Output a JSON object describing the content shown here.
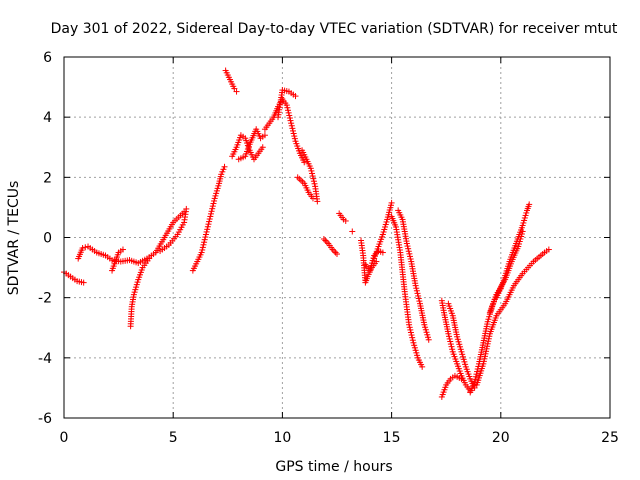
{
  "chart_data": {
    "type": "scatter",
    "title": "Day 301 of 2022, Sidereal Day-to-day VTEC variation (SDTVAR) for receiver mtut",
    "xlabel": "GPS time / hours",
    "ylabel": "SDTVAR / TECUs",
    "xlim": [
      0,
      25
    ],
    "ylim": [
      -6,
      6
    ],
    "xticks": [
      "0",
      "5",
      "10",
      "15",
      "20",
      "25"
    ],
    "yticks": [
      "-6",
      "-4",
      "-2",
      "0",
      "2",
      "4",
      "6"
    ],
    "grid": true,
    "marker": "+",
    "marker_color": "#ff0000",
    "series": [
      {
        "name": "mtut",
        "tracks": [
          [
            [
              0.0,
              -1.15
            ],
            [
              0.3,
              -1.3
            ],
            [
              0.6,
              -1.45
            ],
            [
              0.9,
              -1.5
            ]
          ],
          [
            [
              0.65,
              -0.7
            ],
            [
              0.85,
              -0.35
            ],
            [
              1.1,
              -0.3
            ],
            [
              1.5,
              -0.5
            ],
            [
              1.9,
              -0.6
            ],
            [
              2.2,
              -0.75
            ],
            [
              2.6,
              -0.8
            ],
            [
              3.0,
              -0.75
            ],
            [
              3.4,
              -0.85
            ],
            [
              3.8,
              -0.7
            ],
            [
              4.2,
              -0.5
            ],
            [
              4.6,
              0.0
            ],
            [
              5.0,
              0.5
            ],
            [
              5.5,
              0.85
            ]
          ],
          [
            [
              2.2,
              -1.1
            ],
            [
              2.5,
              -0.5
            ],
            [
              2.7,
              -0.4
            ]
          ],
          [
            [
              3.05,
              -2.95
            ],
            [
              3.1,
              -2.3
            ],
            [
              3.2,
              -1.9
            ],
            [
              3.4,
              -1.4
            ],
            [
              3.6,
              -1.0
            ],
            [
              3.9,
              -0.7
            ]
          ],
          [
            [
              4.4,
              -0.45
            ],
            [
              4.8,
              -0.25
            ],
            [
              5.2,
              0.1
            ],
            [
              5.5,
              0.5
            ],
            [
              5.6,
              0.95
            ]
          ],
          [
            [
              5.9,
              -1.1
            ],
            [
              6.1,
              -0.8
            ],
            [
              6.3,
              -0.5
            ],
            [
              6.5,
              0.1
            ],
            [
              6.7,
              0.7
            ],
            [
              6.9,
              1.3
            ],
            [
              7.1,
              1.8
            ],
            [
              7.2,
              2.1
            ],
            [
              7.35,
              2.35
            ]
          ],
          [
            [
              7.4,
              5.55
            ],
            [
              7.6,
              5.25
            ],
            [
              7.8,
              4.95
            ],
            [
              7.9,
              4.85
            ]
          ],
          [
            [
              7.7,
              2.7
            ],
            [
              7.9,
              3.0
            ],
            [
              8.1,
              3.4
            ],
            [
              8.3,
              3.3
            ],
            [
              8.5,
              2.9
            ],
            [
              8.7,
              2.6
            ],
            [
              8.9,
              2.8
            ],
            [
              9.1,
              3.0
            ]
          ],
          [
            [
              8.0,
              2.6
            ],
            [
              8.3,
              2.7
            ],
            [
              8.5,
              3.1
            ],
            [
              8.8,
              3.6
            ],
            [
              9.0,
              3.3
            ],
            [
              9.2,
              3.4
            ]
          ],
          [
            [
              9.2,
              3.6
            ],
            [
              9.4,
              3.8
            ],
            [
              9.6,
              4.0
            ],
            [
              9.8,
              4.35
            ],
            [
              10.0,
              4.6
            ],
            [
              10.2,
              4.4
            ],
            [
              10.4,
              3.8
            ],
            [
              10.6,
              3.2
            ],
            [
              10.8,
              2.8
            ],
            [
              11.0,
              2.5
            ]
          ],
          [
            [
              9.8,
              4.0
            ],
            [
              10.0,
              4.9
            ],
            [
              10.3,
              4.85
            ],
            [
              10.6,
              4.7
            ]
          ],
          [
            [
              10.9,
              2.9
            ],
            [
              11.1,
              2.6
            ],
            [
              11.3,
              2.3
            ],
            [
              11.5,
              1.7
            ],
            [
              11.6,
              1.2
            ]
          ],
          [
            [
              10.7,
              2.0
            ],
            [
              11.0,
              1.8
            ],
            [
              11.2,
              1.5
            ],
            [
              11.4,
              1.3
            ]
          ],
          [
            [
              11.9,
              -0.05
            ],
            [
              12.1,
              -0.2
            ],
            [
              12.3,
              -0.4
            ],
            [
              12.5,
              -0.55
            ]
          ],
          [
            [
              12.6,
              0.8
            ],
            [
              12.8,
              0.6
            ],
            [
              12.9,
              0.55
            ]
          ],
          [
            [
              13.2,
              0.2
            ]
          ],
          [
            [
              13.6,
              -0.1
            ],
            [
              13.7,
              -0.6
            ],
            [
              13.8,
              -1.5
            ],
            [
              13.9,
              -1.3
            ],
            [
              14.1,
              -1.0
            ],
            [
              14.3,
              -0.8
            ]
          ],
          [
            [
              13.8,
              -0.9
            ],
            [
              14.0,
              -1.1
            ],
            [
              14.2,
              -0.6
            ],
            [
              14.4,
              -0.45
            ],
            [
              14.6,
              -0.5
            ]
          ],
          [
            [
              14.2,
              -0.7
            ],
            [
              14.4,
              -0.3
            ],
            [
              14.6,
              0.1
            ],
            [
              14.8,
              0.6
            ],
            [
              15.0,
              1.15
            ]
          ],
          [
            [
              15.0,
              0.7
            ],
            [
              15.2,
              0.35
            ],
            [
              15.4,
              -0.5
            ],
            [
              15.6,
              -1.8
            ],
            [
              15.8,
              -2.9
            ],
            [
              16.0,
              -3.5
            ],
            [
              16.2,
              -4.0
            ],
            [
              16.4,
              -4.3
            ]
          ],
          [
            [
              15.3,
              0.9
            ],
            [
              15.5,
              0.6
            ],
            [
              15.7,
              -0.2
            ],
            [
              15.9,
              -0.8
            ],
            [
              16.1,
              -1.6
            ],
            [
              16.3,
              -2.2
            ],
            [
              16.5,
              -2.9
            ],
            [
              16.7,
              -3.4
            ]
          ],
          [
            [
              17.3,
              -5.3
            ],
            [
              17.5,
              -4.9
            ],
            [
              17.7,
              -4.7
            ],
            [
              17.9,
              -4.6
            ],
            [
              18.2,
              -4.7
            ]
          ],
          [
            [
              17.3,
              -2.1
            ],
            [
              17.4,
              -2.5
            ],
            [
              17.6,
              -3.2
            ],
            [
              17.8,
              -3.8
            ],
            [
              18.0,
              -4.2
            ],
            [
              18.2,
              -4.6
            ],
            [
              18.4,
              -4.9
            ],
            [
              18.6,
              -5.1
            ]
          ],
          [
            [
              17.6,
              -2.2
            ],
            [
              17.8,
              -2.6
            ],
            [
              18.0,
              -3.3
            ],
            [
              18.2,
              -3.8
            ],
            [
              18.4,
              -4.3
            ],
            [
              18.6,
              -4.7
            ],
            [
              18.8,
              -5.0
            ]
          ],
          [
            [
              18.6,
              -5.15
            ],
            [
              18.8,
              -4.8
            ],
            [
              19.0,
              -4.2
            ],
            [
              19.2,
              -3.5
            ],
            [
              19.4,
              -2.8
            ],
            [
              19.6,
              -2.3
            ],
            [
              19.8,
              -1.9
            ],
            [
              20.0,
              -1.7
            ]
          ],
          [
            [
              18.9,
              -4.9
            ],
            [
              19.2,
              -4.2
            ],
            [
              19.5,
              -3.2
            ],
            [
              19.8,
              -2.6
            ],
            [
              20.2,
              -2.2
            ],
            [
              20.6,
              -1.6
            ],
            [
              21.0,
              -1.2
            ],
            [
              21.5,
              -0.8
            ],
            [
              22.0,
              -0.5
            ],
            [
              22.2,
              -0.4
            ]
          ],
          [
            [
              19.8,
              -2.0
            ],
            [
              20.1,
              -1.5
            ],
            [
              20.4,
              -0.8
            ],
            [
              20.7,
              -0.2
            ],
            [
              21.0,
              0.4
            ],
            [
              21.2,
              0.9
            ],
            [
              21.3,
              1.1
            ]
          ],
          [
            [
              19.5,
              -2.5
            ],
            [
              19.8,
              -1.9
            ],
            [
              20.2,
              -1.4
            ],
            [
              20.5,
              -0.8
            ],
            [
              20.8,
              -0.3
            ],
            [
              21.0,
              0.2
            ]
          ]
        ]
      }
    ]
  }
}
